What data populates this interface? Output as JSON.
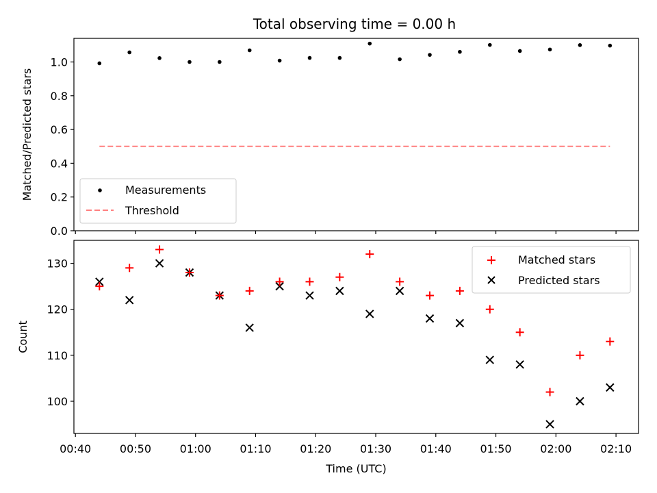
{
  "title": "Total observing time = 0.00 h",
  "xlabel": "Time (UTC)",
  "colors": {
    "measurements": "#000000",
    "threshold": "#ff7f7f",
    "matched": "#ff0000",
    "predicted": "#000000"
  },
  "chart_data": [
    {
      "type": "scatter",
      "title": "Total observing time = 0.00 h",
      "xlabel": "",
      "ylabel": "Matched/Predicted stars",
      "ylim": [
        0,
        1.14
      ],
      "yticks": [
        0.0,
        0.2,
        0.4,
        0.6,
        0.8,
        1.0
      ],
      "ytick_labels": [
        "0.0",
        "0.2",
        "0.4",
        "0.6",
        "0.8",
        "1.0"
      ],
      "xticks": [
        "00:40",
        "00:50",
        "01:00",
        "01:10",
        "01:20",
        "01:30",
        "01:40",
        "01:50",
        "02:00",
        "02:10"
      ],
      "show_xtick_labels": false,
      "legend_placement": "lower-left",
      "series": [
        {
          "name": "Measurements",
          "style": "dots",
          "x": [
            "00:44",
            "00:49",
            "00:54",
            "00:59",
            "01:04",
            "01:09",
            "01:14",
            "01:19",
            "01:24",
            "01:29",
            "01:34",
            "01:39",
            "01:44",
            "01:49",
            "01:54",
            "01:59",
            "02:04",
            "02:09"
          ],
          "y": [
            0.992,
            1.057,
            1.023,
            1.0,
            1.0,
            1.069,
            1.008,
            1.024,
            1.024,
            1.109,
            1.016,
            1.042,
            1.06,
            1.101,
            1.065,
            1.074,
            1.1,
            1.097
          ]
        },
        {
          "name": "Threshold",
          "style": "dashed-line",
          "x": [
            "00:44",
            "02:09"
          ],
          "y": [
            0.5,
            0.5
          ]
        }
      ]
    },
    {
      "type": "scatter",
      "xlabel": "Time (UTC)",
      "ylabel": "Count",
      "ylim": [
        93,
        135
      ],
      "yticks": [
        100,
        110,
        120,
        130
      ],
      "ytick_labels": [
        "100",
        "110",
        "120",
        "130"
      ],
      "xticks": [
        "00:40",
        "00:50",
        "01:00",
        "01:10",
        "01:20",
        "01:30",
        "01:40",
        "01:50",
        "02:00",
        "02:10"
      ],
      "show_xtick_labels": true,
      "legend_placement": "upper-right",
      "x": [
        "00:44",
        "00:49",
        "00:54",
        "00:59",
        "01:04",
        "01:09",
        "01:14",
        "01:19",
        "01:24",
        "01:29",
        "01:34",
        "01:39",
        "01:44",
        "01:49",
        "01:54",
        "01:59",
        "02:04",
        "02:09"
      ],
      "series": [
        {
          "name": "Matched stars",
          "marker": "plus",
          "values": [
            125,
            129,
            133,
            128,
            123,
            124,
            126,
            126,
            127,
            132,
            126,
            123,
            124,
            120,
            115,
            102,
            110,
            113
          ]
        },
        {
          "name": "Predicted stars",
          "marker": "x",
          "values": [
            126,
            122,
            130,
            128,
            123,
            116,
            125,
            123,
            124,
            119,
            124,
            118,
            117,
            109,
            108,
            95,
            100,
            103
          ]
        }
      ]
    }
  ]
}
